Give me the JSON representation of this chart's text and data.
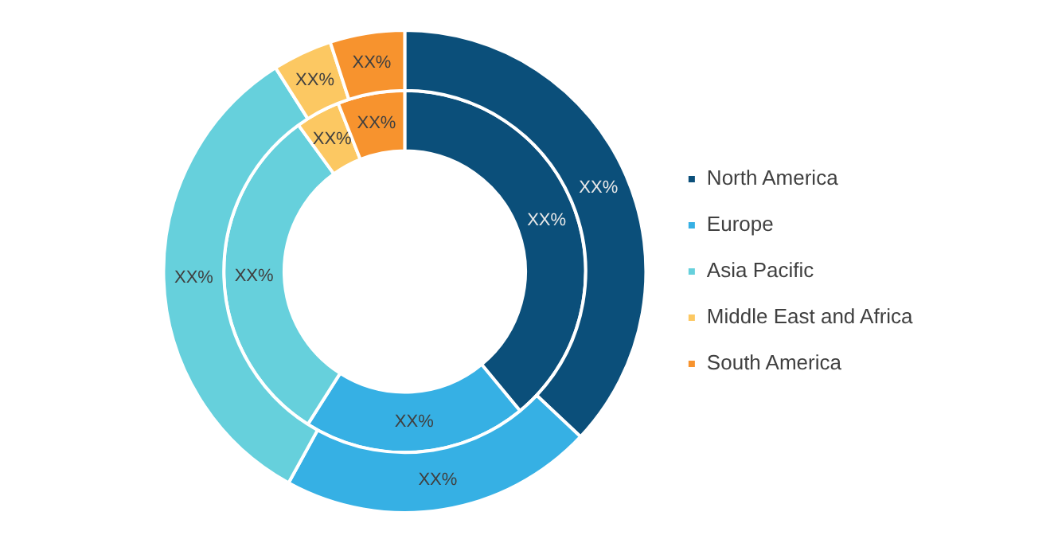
{
  "chart_data": {
    "type": "donut",
    "categories": [
      "North America",
      "Europe",
      "Asia Pacific",
      "Middle East and Africa",
      "South America"
    ],
    "colors": [
      "#0b4f7a",
      "#36b0e4",
      "#66d0dc",
      "#fcc862",
      "#f7932e"
    ],
    "legend": "right",
    "series": [
      {
        "values": [
          37,
          21,
          33,
          4,
          5
        ],
        "value_labels": [
          "XX%",
          "XX%",
          "XX%",
          "XX%",
          "XX%"
        ]
      },
      {
        "values": [
          39,
          20,
          31,
          4,
          6
        ],
        "value_labels": [
          "XX%",
          "XX%",
          "XX%",
          "XX%",
          "XX%"
        ]
      }
    ]
  }
}
